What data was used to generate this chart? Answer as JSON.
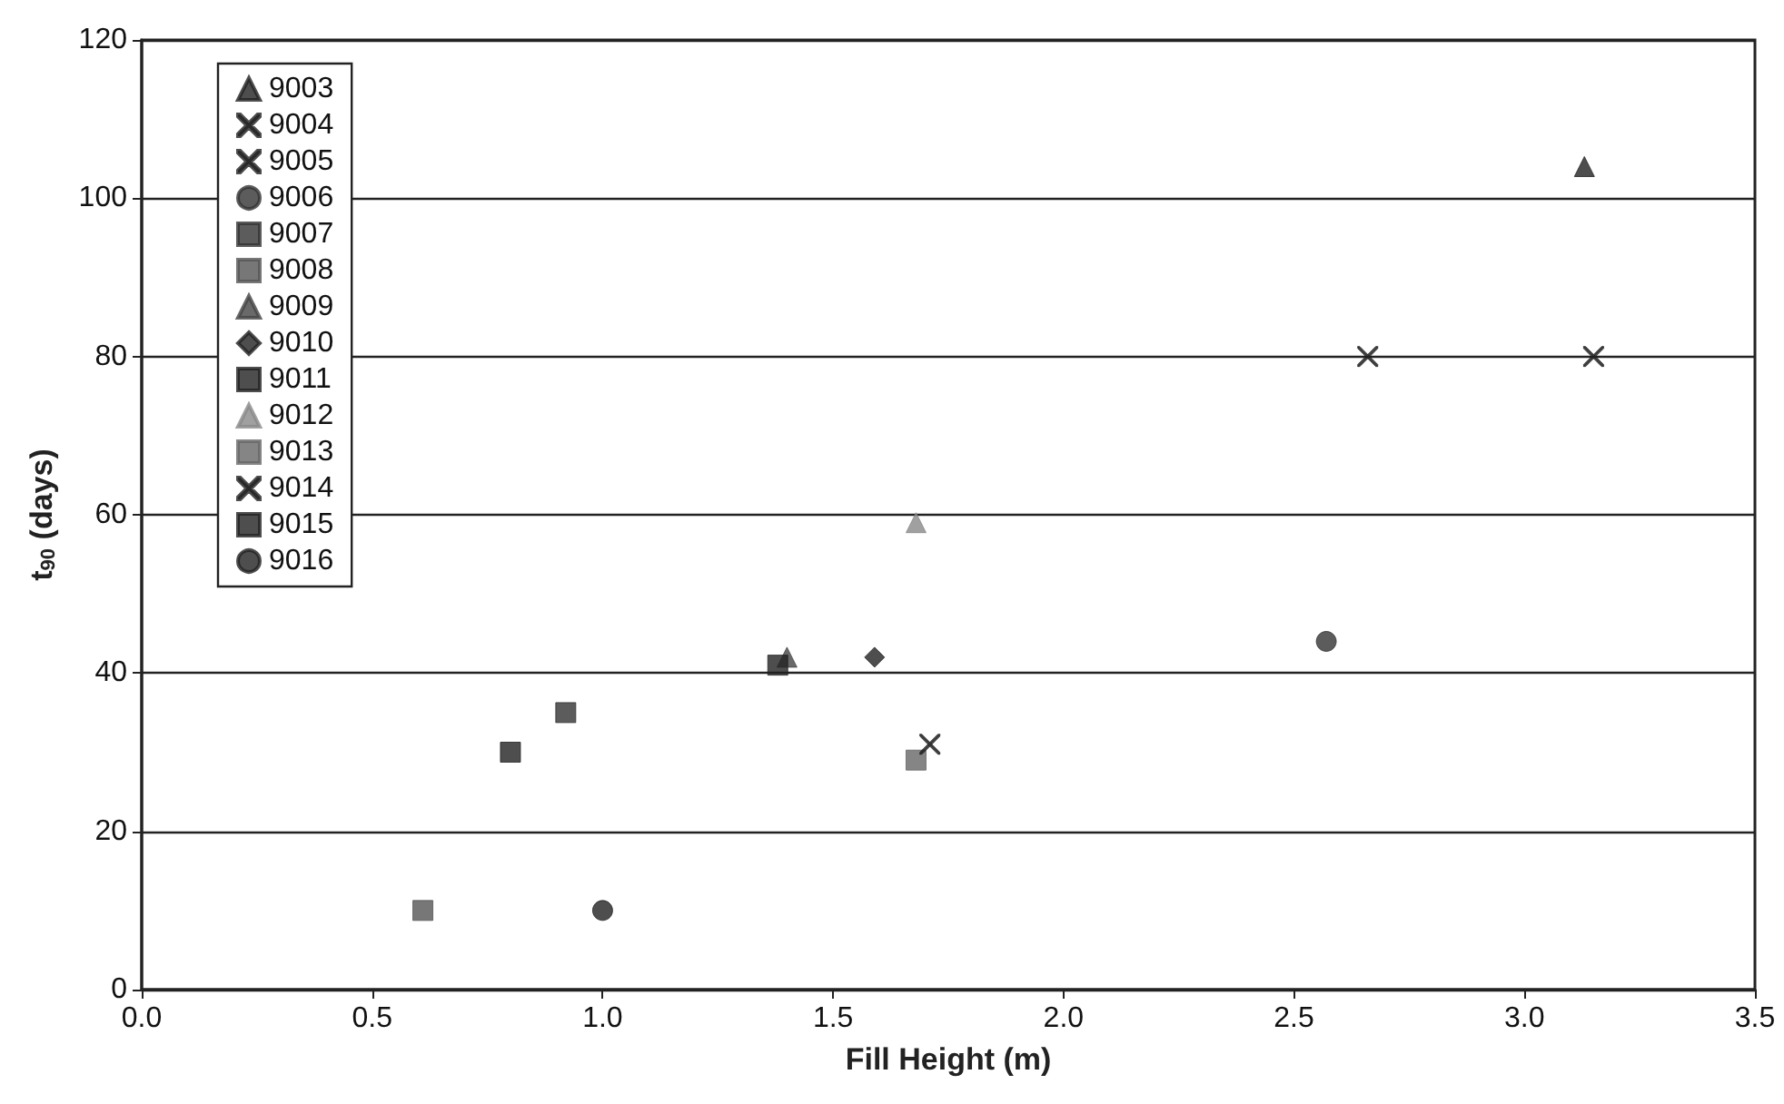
{
  "chart_data": {
    "type": "scatter",
    "xlabel": "Fill Height (m)",
    "ylabel": "t$_{90}$ (days)",
    "xlim": [
      0,
      3.5
    ],
    "xticks": [
      {
        "value": 0,
        "label": "0.0"
      },
      {
        "value": 0.5,
        "label": "0.5"
      },
      {
        "value": 1,
        "label": "1.0"
      },
      {
        "value": 1.5,
        "label": "1.5"
      },
      {
        "value": 2,
        "label": "2.0"
      },
      {
        "value": 2.5,
        "label": "2.5"
      },
      {
        "value": 3,
        "label": "3.0"
      },
      {
        "value": 3.5,
        "label": "3.5"
      }
    ],
    "ylim": [
      0,
      120
    ],
    "yticks": [
      0,
      20,
      40,
      60,
      80,
      100,
      120
    ],
    "grid": "y",
    "legend": "top left",
    "series": [
      {
        "name": "9003",
        "color": "#222222",
        "marker": "triangle",
        "x": [
          3.13
        ],
        "values": [
          104
        ]
      },
      {
        "name": "9004",
        "color": "#222222",
        "marker": "cross",
        "x": [
          3.15
        ],
        "values": [
          80
        ]
      },
      {
        "name": "9005",
        "color": "#222222",
        "marker": "cross",
        "x": [
          2.66
        ],
        "values": [
          80
        ]
      },
      {
        "name": "9006",
        "color": "#333333",
        "marker": "circle",
        "x": [
          2.57
        ],
        "values": [
          44
        ]
      },
      {
        "name": "9007",
        "color": "#333333",
        "marker": "square",
        "x": [
          0.92
        ],
        "values": [
          35
        ]
      },
      {
        "name": "9008",
        "color": "#555555",
        "marker": "square",
        "x": [
          0.61
        ],
        "values": [
          10
        ]
      },
      {
        "name": "9009",
        "color": "#444444",
        "marker": "triangle",
        "x": [
          1.4
        ],
        "values": [
          42
        ]
      },
      {
        "name": "9010",
        "color": "#222222",
        "marker": "diamond",
        "x": [
          1.59
        ],
        "values": [
          42
        ]
      },
      {
        "name": "9011",
        "color": "#222222",
        "marker": "square",
        "x": [
          0.8
        ],
        "values": [
          30
        ]
      },
      {
        "name": "9012",
        "color": "#888888",
        "marker": "triangle",
        "x": [
          1.68
        ],
        "values": [
          59
        ]
      },
      {
        "name": "9013",
        "color": "#666666",
        "marker": "square",
        "x": [
          1.68
        ],
        "values": [
          29
        ]
      },
      {
        "name": "9014",
        "color": "#222222",
        "marker": "cross",
        "x": [
          1.71
        ],
        "values": [
          31
        ]
      },
      {
        "name": "9015",
        "color": "#222222",
        "marker": "square",
        "x": [
          1.38
        ],
        "values": [
          41
        ]
      },
      {
        "name": "9016",
        "color": "#222222",
        "marker": "circle",
        "x": [
          1.0
        ],
        "values": [
          10
        ]
      }
    ]
  }
}
